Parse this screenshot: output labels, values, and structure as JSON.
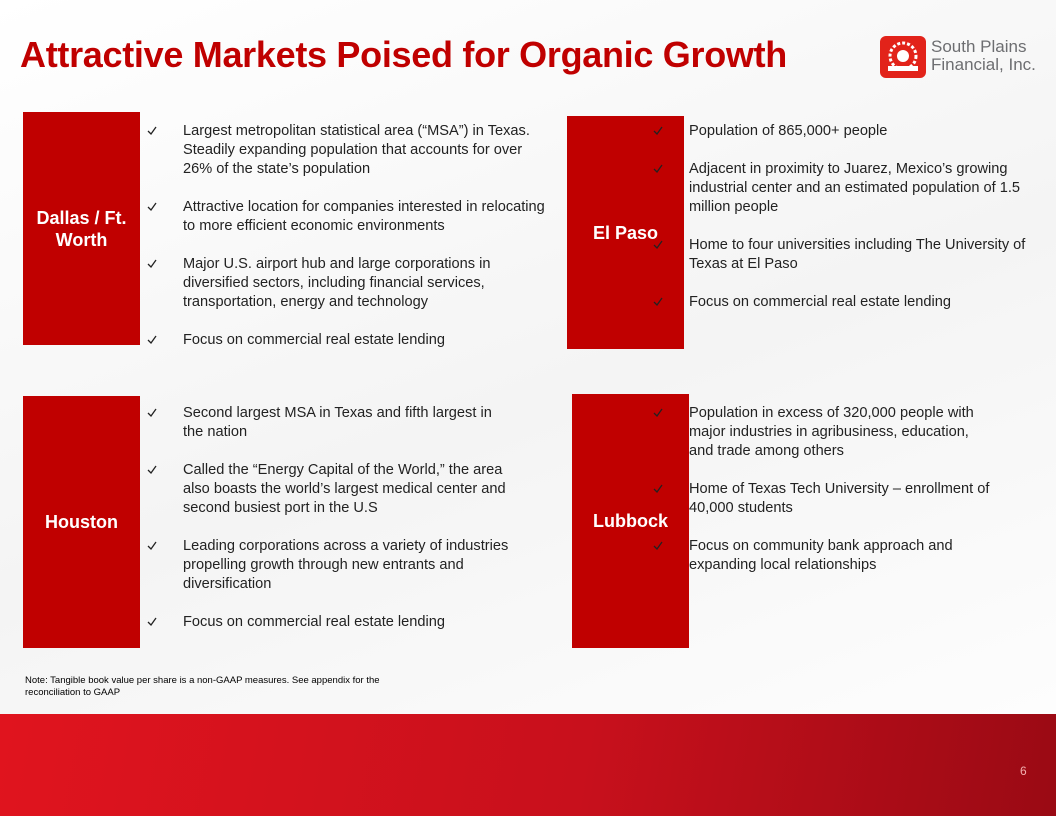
{
  "header": {
    "title": "Attractive Markets Poised for Organic Growth",
    "logo_line1": "South Plains",
    "logo_line2": "Financial, Inc."
  },
  "markets": [
    {
      "name": "Dallas / Ft. Worth",
      "bullets": [
        "Largest metropolitan statistical area (“MSA”) in Texas. Steadily expanding population that accounts for over 26% of the state’s population",
        "Attractive location for companies interested in relocating to more efficient economic environments",
        "Major U.S. airport hub and large corporations in diversified sectors, including financial services, transportation, energy and technology",
        "Focus on commercial real estate lending"
      ]
    },
    {
      "name": "El Paso",
      "bullets": [
        "Population of 865,000+ people",
        "Adjacent in proximity to Juarez, Mexico’s growing industrial center and an estimated population of 1.5 million people",
        "Home to four universities including The University of Texas at El Paso",
        "Focus on commercial real estate lending"
      ]
    },
    {
      "name": "Houston",
      "bullets": [
        "Second largest MSA in Texas and fifth largest in the nation",
        "Called the “Energy Capital of the World,” the area also boasts the world’s largest medical center and second busiest port in the U.S",
        "Leading corporations across a variety of industries propelling growth through new entrants and diversification",
        "Focus on commercial real estate lending"
      ]
    },
    {
      "name": "Lubbock",
      "bullets": [
        "Population in excess of 320,000 people with major industries in agribusiness, education, and trade among others",
        "Home of Texas Tech University – enrollment of 40,000 students",
        "Focus on community bank approach and expanding local relationships"
      ]
    }
  ],
  "note": "Note: Tangible book value per share is a non-GAAP measures. See appendix for the reconciliation to GAAP",
  "page_number": "6"
}
